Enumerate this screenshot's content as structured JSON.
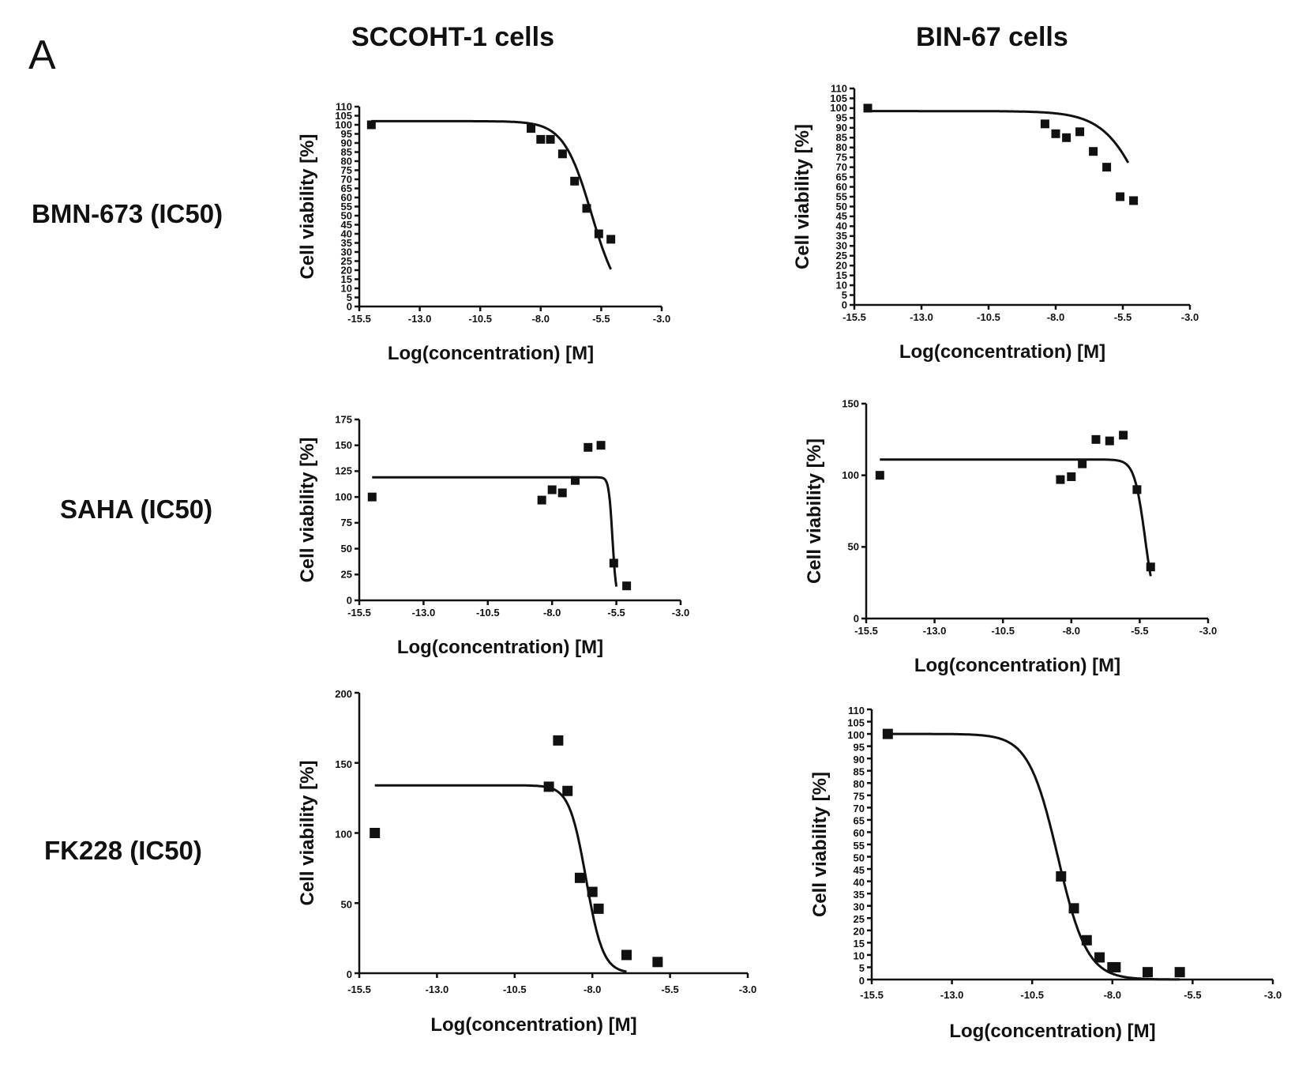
{
  "panel_label": "A",
  "columns": [
    "SCCOHT-1 cells",
    "BIN-67 cells"
  ],
  "rows": [
    "BMN-673 (IC50)",
    "SAHA (IC50)",
    "FK228 (IC50)"
  ],
  "chart_data": [
    {
      "type": "scatter",
      "column": "SCCOHT-1 cells",
      "row": "BMN-673 (IC50)",
      "xlabel": "Log(concentration) [M]",
      "ylabel": "Cell viability [%]",
      "xlim": [
        -15.5,
        -3.0
      ],
      "ylim": [
        0,
        110
      ],
      "xticks": [
        "-15.5",
        "-13.0",
        "-10.5",
        "-8.0",
        "-5.5",
        "-3.0"
      ],
      "yticks": [
        "0",
        "5",
        "10",
        "15",
        "20",
        "25",
        "30",
        "35",
        "40",
        "45",
        "50",
        "55",
        "60",
        "65",
        "70",
        "75",
        "80",
        "85",
        "90",
        "95",
        "100",
        "105",
        "110"
      ],
      "points": [
        [
          -15.0,
          100
        ],
        [
          -8.4,
          98
        ],
        [
          -8.0,
          92
        ],
        [
          -7.6,
          92
        ],
        [
          -7.1,
          84
        ],
        [
          -6.6,
          69
        ],
        [
          -6.1,
          54
        ],
        [
          -5.6,
          40
        ],
        [
          -5.1,
          37
        ]
      ],
      "fit": {
        "top": 102,
        "bottom": 0,
        "logIC50": -5.9,
        "hill": 0.75,
        "x_range": [
          -15.0,
          -5.1
        ]
      }
    },
    {
      "type": "scatter",
      "column": "BIN-67 cells",
      "row": "BMN-673 (IC50)",
      "xlabel": "Log(concentration) [M]",
      "ylabel": "Cell viability [%]",
      "xlim": [
        -15.5,
        -3.0
      ],
      "ylim": [
        0,
        110
      ],
      "xticks": [
        "-15.5",
        "-13.0",
        "-10.5",
        "-8.0",
        "-5.5",
        "-3.0"
      ],
      "yticks": [
        "0",
        "5",
        "10",
        "15",
        "20",
        "25",
        "30",
        "35",
        "40",
        "45",
        "50",
        "55",
        "60",
        "65",
        "70",
        "75",
        "80",
        "85",
        "90",
        "95",
        "100",
        "105",
        "110"
      ],
      "points": [
        [
          -15.0,
          100
        ],
        [
          -8.4,
          92
        ],
        [
          -8.0,
          87
        ],
        [
          -7.6,
          85
        ],
        [
          -7.1,
          88
        ],
        [
          -6.6,
          78
        ],
        [
          -6.1,
          70
        ],
        [
          -5.6,
          55
        ],
        [
          -5.1,
          53
        ]
      ],
      "fit": {
        "top": 98.5,
        "bottom": 0,
        "logIC50": -4.5,
        "hill": 0.55,
        "x_range": [
          -15.0,
          -5.3
        ]
      }
    },
    {
      "type": "scatter",
      "column": "SCCOHT-1 cells",
      "row": "SAHA (IC50)",
      "xlabel": "Log(concentration) [M]",
      "ylabel": "Cell viability [%]",
      "xlim": [
        -15.5,
        -3.0
      ],
      "ylim": [
        0,
        175
      ],
      "xticks": [
        "-15.5",
        "-13.0",
        "-10.5",
        "-8.0",
        "-5.5",
        "-3.0"
      ],
      "yticks": [
        "0",
        "25",
        "50",
        "75",
        "100",
        "125",
        "150",
        "175"
      ],
      "points": [
        [
          -15.0,
          100
        ],
        [
          -8.4,
          97
        ],
        [
          -8.0,
          107
        ],
        [
          -7.6,
          104
        ],
        [
          -7.1,
          116
        ],
        [
          -6.6,
          148
        ],
        [
          -6.1,
          150
        ],
        [
          -5.6,
          36
        ],
        [
          -5.1,
          14
        ]
      ],
      "fit": {
        "top": 119,
        "bottom": 0,
        "logIC50": -5.65,
        "hill": 6,
        "x_range": [
          -15.0,
          -5.5
        ]
      }
    },
    {
      "type": "scatter",
      "column": "BIN-67 cells",
      "row": "SAHA (IC50)",
      "xlabel": "Log(concentration) [M]",
      "ylabel": "Cell viability [%]",
      "xlim": [
        -15.5,
        -3.0
      ],
      "ylim": [
        0,
        150
      ],
      "xticks": [
        "-15.5",
        "-13.0",
        "-10.5",
        "-8.0",
        "-5.5",
        "-3.0"
      ],
      "yticks": [
        "0",
        "50",
        "100",
        "150"
      ],
      "points": [
        [
          -15.0,
          100
        ],
        [
          -8.4,
          97
        ],
        [
          -8.0,
          99
        ],
        [
          -7.6,
          108
        ],
        [
          -7.1,
          125
        ],
        [
          -6.6,
          124
        ],
        [
          -6.1,
          128
        ],
        [
          -5.6,
          90
        ],
        [
          -5.1,
          36
        ]
      ],
      "fit": {
        "top": 111,
        "bottom": 0,
        "logIC50": -5.3,
        "hill": 2.2,
        "x_range": [
          -15.0,
          -5.1
        ]
      }
    },
    {
      "type": "scatter",
      "column": "SCCOHT-1 cells",
      "row": "FK228 (IC50)",
      "xlabel": "Log(concentration) [M]",
      "ylabel": "Cell viability [%]",
      "xlim": [
        -15.5,
        -3.0
      ],
      "ylim": [
        0,
        200
      ],
      "xticks": [
        "-15.5",
        "-13.0",
        "-10.5",
        "-8.0",
        "-5.5",
        "-3.0"
      ],
      "yticks": [
        "0",
        "50",
        "100",
        "150",
        "200"
      ],
      "points": [
        [
          -15.0,
          100
        ],
        [
          -9.4,
          133
        ],
        [
          -9.1,
          166
        ],
        [
          -8.8,
          130
        ],
        [
          -8.4,
          68
        ],
        [
          -8.0,
          58
        ],
        [
          -7.8,
          46
        ],
        [
          -6.9,
          13
        ],
        [
          -5.9,
          8
        ]
      ],
      "fit": {
        "top": 134,
        "bottom": 0,
        "logIC50": -8.2,
        "hill": 1.6,
        "x_range": [
          -15.0,
          -6.9
        ]
      }
    },
    {
      "type": "scatter",
      "column": "BIN-67 cells",
      "row": "FK228 (IC50)",
      "xlabel": "Log(concentration) [M]",
      "ylabel": "Cell viability [%]",
      "xlim": [
        -15.5,
        -3.0
      ],
      "ylim": [
        0,
        110
      ],
      "xticks": [
        "-15.5",
        "-13.0",
        "-10.5",
        "-8.0",
        "-5.5",
        "-3.0"
      ],
      "yticks": [
        "0",
        "5",
        "10",
        "15",
        "20",
        "25",
        "30",
        "35",
        "40",
        "45",
        "50",
        "55",
        "60",
        "65",
        "70",
        "75",
        "80",
        "85",
        "90",
        "95",
        "100",
        "105",
        "110"
      ],
      "points": [
        [
          -15.0,
          100
        ],
        [
          -9.6,
          42
        ],
        [
          -9.2,
          29
        ],
        [
          -8.8,
          16
        ],
        [
          -8.4,
          9
        ],
        [
          -8.0,
          5
        ],
        [
          -7.9,
          5
        ],
        [
          -6.9,
          3
        ],
        [
          -5.9,
          3
        ]
      ],
      "fit": {
        "top": 100,
        "bottom": 0,
        "logIC50": -9.7,
        "hill": 0.95,
        "x_range": [
          -15.0,
          -5.9
        ]
      }
    }
  ]
}
